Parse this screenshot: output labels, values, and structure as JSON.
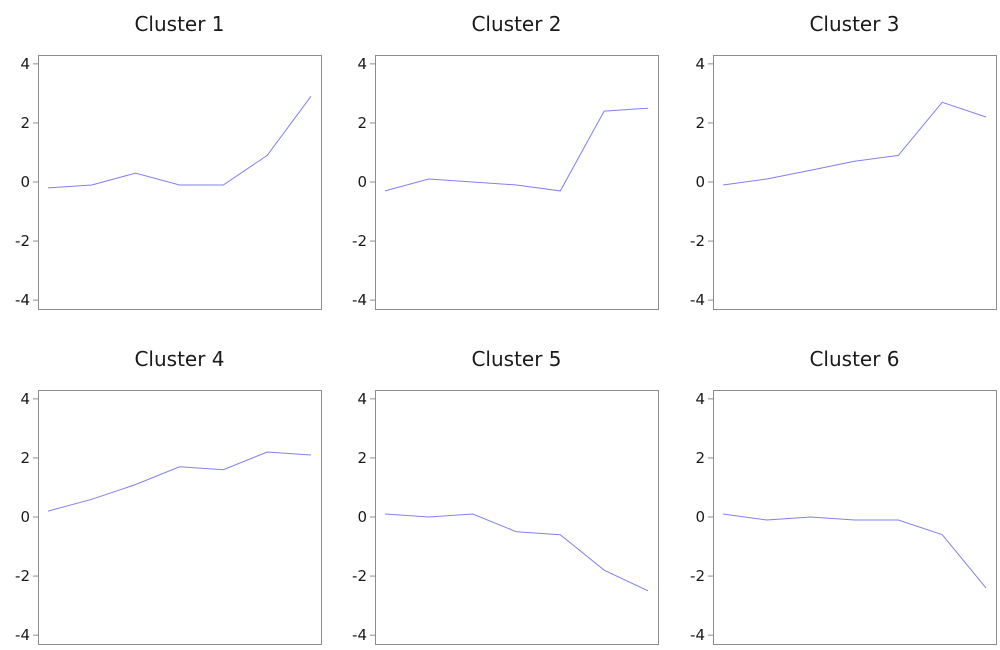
{
  "chart_data": [
    {
      "type": "line",
      "title": "Cluster 1",
      "xlabel": "",
      "ylabel": "",
      "x": [
        1,
        2,
        3,
        4,
        5,
        6,
        7
      ],
      "values": [
        -0.2,
        -0.1,
        0.3,
        -0.1,
        -0.1,
        0.9,
        2.9
      ],
      "ylim": [
        -4.3,
        4.3
      ],
      "yticks": [
        4,
        2,
        0,
        -2,
        -4
      ],
      "ytick_labels": [
        "4",
        "2",
        "0",
        "-2",
        "-4"
      ],
      "grid": false
    },
    {
      "type": "line",
      "title": "Cluster 2",
      "xlabel": "",
      "ylabel": "",
      "x": [
        1,
        2,
        3,
        4,
        5,
        6,
        7
      ],
      "values": [
        -0.3,
        0.1,
        0.0,
        -0.1,
        -0.3,
        2.4,
        2.5
      ],
      "ylim": [
        -4.3,
        4.3
      ],
      "yticks": [
        4,
        2,
        0,
        -2,
        -4
      ],
      "ytick_labels": [
        "4",
        "2",
        "0",
        "-2",
        "-4"
      ],
      "grid": false
    },
    {
      "type": "line",
      "title": "Cluster 3",
      "xlabel": "",
      "ylabel": "",
      "x": [
        1,
        2,
        3,
        4,
        5,
        6,
        7
      ],
      "values": [
        -0.1,
        0.1,
        0.4,
        0.7,
        0.9,
        2.7,
        2.2
      ],
      "ylim": [
        -4.3,
        4.3
      ],
      "yticks": [
        4,
        2,
        0,
        -2,
        -4
      ],
      "ytick_labels": [
        "4",
        "2",
        "0",
        "-2",
        "-4"
      ],
      "grid": false
    },
    {
      "type": "line",
      "title": "Cluster 4",
      "xlabel": "",
      "ylabel": "",
      "x": [
        1,
        2,
        3,
        4,
        5,
        6,
        7
      ],
      "values": [
        0.2,
        0.6,
        1.1,
        1.7,
        1.6,
        2.2,
        2.1
      ],
      "ylim": [
        -4.3,
        4.3
      ],
      "yticks": [
        4,
        2,
        0,
        -2,
        -4
      ],
      "ytick_labels": [
        "4",
        "2",
        "0",
        "-2",
        "-4"
      ],
      "grid": false
    },
    {
      "type": "line",
      "title": "Cluster 5",
      "xlabel": "",
      "ylabel": "",
      "x": [
        1,
        2,
        3,
        4,
        5,
        6,
        7
      ],
      "values": [
        0.1,
        0.0,
        0.1,
        -0.5,
        -0.6,
        -1.8,
        -2.5
      ],
      "ylim": [
        -4.3,
        4.3
      ],
      "yticks": [
        4,
        2,
        0,
        -2,
        -4
      ],
      "ytick_labels": [
        "4",
        "2",
        "0",
        "-2",
        "-4"
      ],
      "grid": false
    },
    {
      "type": "line",
      "title": "Cluster 6",
      "xlabel": "",
      "ylabel": "",
      "x": [
        1,
        2,
        3,
        4,
        5,
        6,
        7
      ],
      "values": [
        0.1,
        -0.1,
        0.0,
        -0.1,
        -0.1,
        -0.6,
        -2.4
      ],
      "ylim": [
        -4.3,
        4.3
      ],
      "yticks": [
        4,
        2,
        0,
        -2,
        -4
      ],
      "ytick_labels": [
        "4",
        "2",
        "0",
        "-2",
        "-4"
      ],
      "grid": false
    }
  ],
  "colors": {
    "line": "#8080f0",
    "frame": "#8c8c8c",
    "text": "#1a1a1a",
    "background": "#ffffff"
  }
}
